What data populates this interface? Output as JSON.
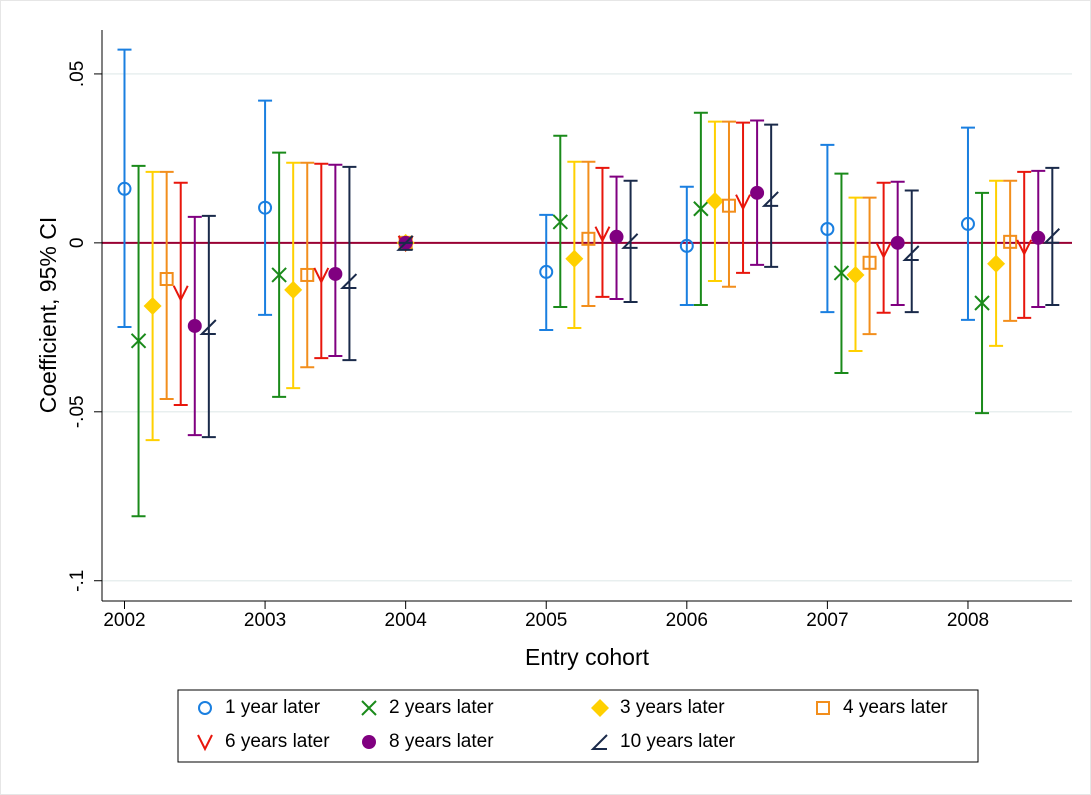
{
  "chart_data": {
    "type": "errorbar",
    "x_label": "Entry cohort",
    "y_label": "Coefficient, 95% CI",
    "xlim": [
      2001.84,
      2008.74
    ],
    "xticks": [
      2002,
      2003,
      2004,
      2005,
      2006,
      2007,
      2008
    ],
    "ylim": [
      -0.106,
      0.063
    ],
    "yticks": [
      {
        "value": -0.1,
        "label": "-.1"
      },
      {
        "value": -0.05,
        "label": "-.05"
      },
      0,
      {
        "value": 0.05,
        "label": ".05"
      }
    ],
    "grid": true,
    "reference_line": {
      "value": 0,
      "color": "#990033"
    },
    "legend": "bottom",
    "series": [
      {
        "name": "1 year later",
        "color": "#1a7fe0",
        "marker": "circle",
        "x": [
          2002,
          2003,
          2004,
          2005,
          2006,
          2007,
          2008
        ],
        "values": [
          0.016,
          0.0104,
          0,
          -0.0086,
          -0.0009,
          0.0041,
          0.0056
        ],
        "lower": [
          -0.0249,
          -0.0213,
          0,
          -0.0258,
          -0.0184,
          -0.0205,
          -0.0228
        ],
        "upper": [
          0.0572,
          0.0421,
          0,
          0.0083,
          0.0166,
          0.029,
          0.0341
        ]
      },
      {
        "name": "2 years later",
        "color": "#1a8a1a",
        "marker": "x",
        "x": [
          2002.1,
          2003.1,
          2004,
          2005.1,
          2006.1,
          2007.1,
          2008.1
        ],
        "values": [
          -0.029,
          -0.0095,
          0,
          0.0062,
          0.0101,
          -0.0089,
          -0.0178
        ],
        "lower": [
          -0.0809,
          -0.0456,
          0,
          -0.019,
          -0.0184,
          -0.0385,
          -0.0504
        ],
        "upper": [
          0.0228,
          0.0267,
          0,
          0.0317,
          0.0385,
          0.0205,
          0.0148
        ]
      },
      {
        "name": "3 years later",
        "color": "#ffd000",
        "marker": "diamond",
        "x": [
          2002.2,
          2003.2,
          2004,
          2005.2,
          2006.2,
          2007.2,
          2008.2
        ],
        "values": [
          -0.0187,
          -0.0139,
          0,
          -0.0047,
          0.0124,
          -0.0095,
          -0.0062
        ],
        "lower": [
          -0.0584,
          -0.043,
          0,
          -0.0252,
          -0.0113,
          -0.032,
          -0.0305
        ],
        "upper": [
          0.021,
          0.0237,
          0,
          0.024,
          0.0359,
          0.0134,
          0.0184
        ]
      },
      {
        "name": "4 years later",
        "color": "#f28e1c",
        "marker": "square",
        "x": [
          2002.3,
          2003.3,
          2004,
          2005.3,
          2006.3,
          2007.3,
          2008.3
        ],
        "values": [
          -0.0107,
          -0.0095,
          0,
          0.0012,
          0.011,
          -0.0059,
          0.0003
        ],
        "lower": [
          -0.0462,
          -0.0368,
          0,
          -0.0187,
          -0.013,
          -0.027,
          -0.0231
        ],
        "upper": [
          0.021,
          0.0237,
          0,
          0.024,
          0.0359,
          0.0134,
          0.0184
        ]
      },
      {
        "name": "6 years later",
        "color": "#e8160c",
        "marker": "v",
        "x": [
          2002.4,
          2003.4,
          2004,
          2005.4,
          2006.4,
          2007.4,
          2008.4
        ],
        "values": [
          -0.0148,
          -0.0095,
          0,
          0.0027,
          0.0122,
          -0.0021,
          -0.0012
        ],
        "lower": [
          -0.048,
          -0.0341,
          0,
          -0.016,
          -0.0089,
          -0.0207,
          -0.0222
        ],
        "upper": [
          0.0178,
          0.0234,
          0,
          0.0222,
          0.0356,
          0.0178,
          0.021
        ]
      },
      {
        "name": "8 years later",
        "color": "#800080",
        "marker": "dot",
        "x": [
          2002.5,
          2003.5,
          2004,
          2005.5,
          2006.5,
          2007.5,
          2008.5
        ],
        "values": [
          -0.0246,
          -0.0092,
          0,
          0.0018,
          0.0148,
          0,
          0.0015
        ],
        "lower": [
          -0.0569,
          -0.0335,
          0,
          -0.0166,
          -0.0065,
          -0.0184,
          -0.019
        ],
        "upper": [
          0.0077,
          0.0231,
          0,
          0.0196,
          0.0362,
          0.0181,
          0.0213
        ]
      },
      {
        "name": "10 years later",
        "color": "#1a2a4a",
        "marker": "angle",
        "x": [
          2002.6,
          2003.6,
          2004,
          2005.6,
          2006.6,
          2007.6,
          2008.6
        ],
        "values": [
          -0.0249,
          -0.0113,
          0,
          0.0006,
          0.013,
          -0.003,
          0.0021
        ],
        "lower": [
          -0.0575,
          -0.0347,
          0,
          -0.0175,
          -0.0071,
          -0.0205,
          -0.0184
        ],
        "upper": [
          0.008,
          0.0225,
          0,
          0.0184,
          0.035,
          0.0155,
          0.0222
        ]
      }
    ]
  }
}
